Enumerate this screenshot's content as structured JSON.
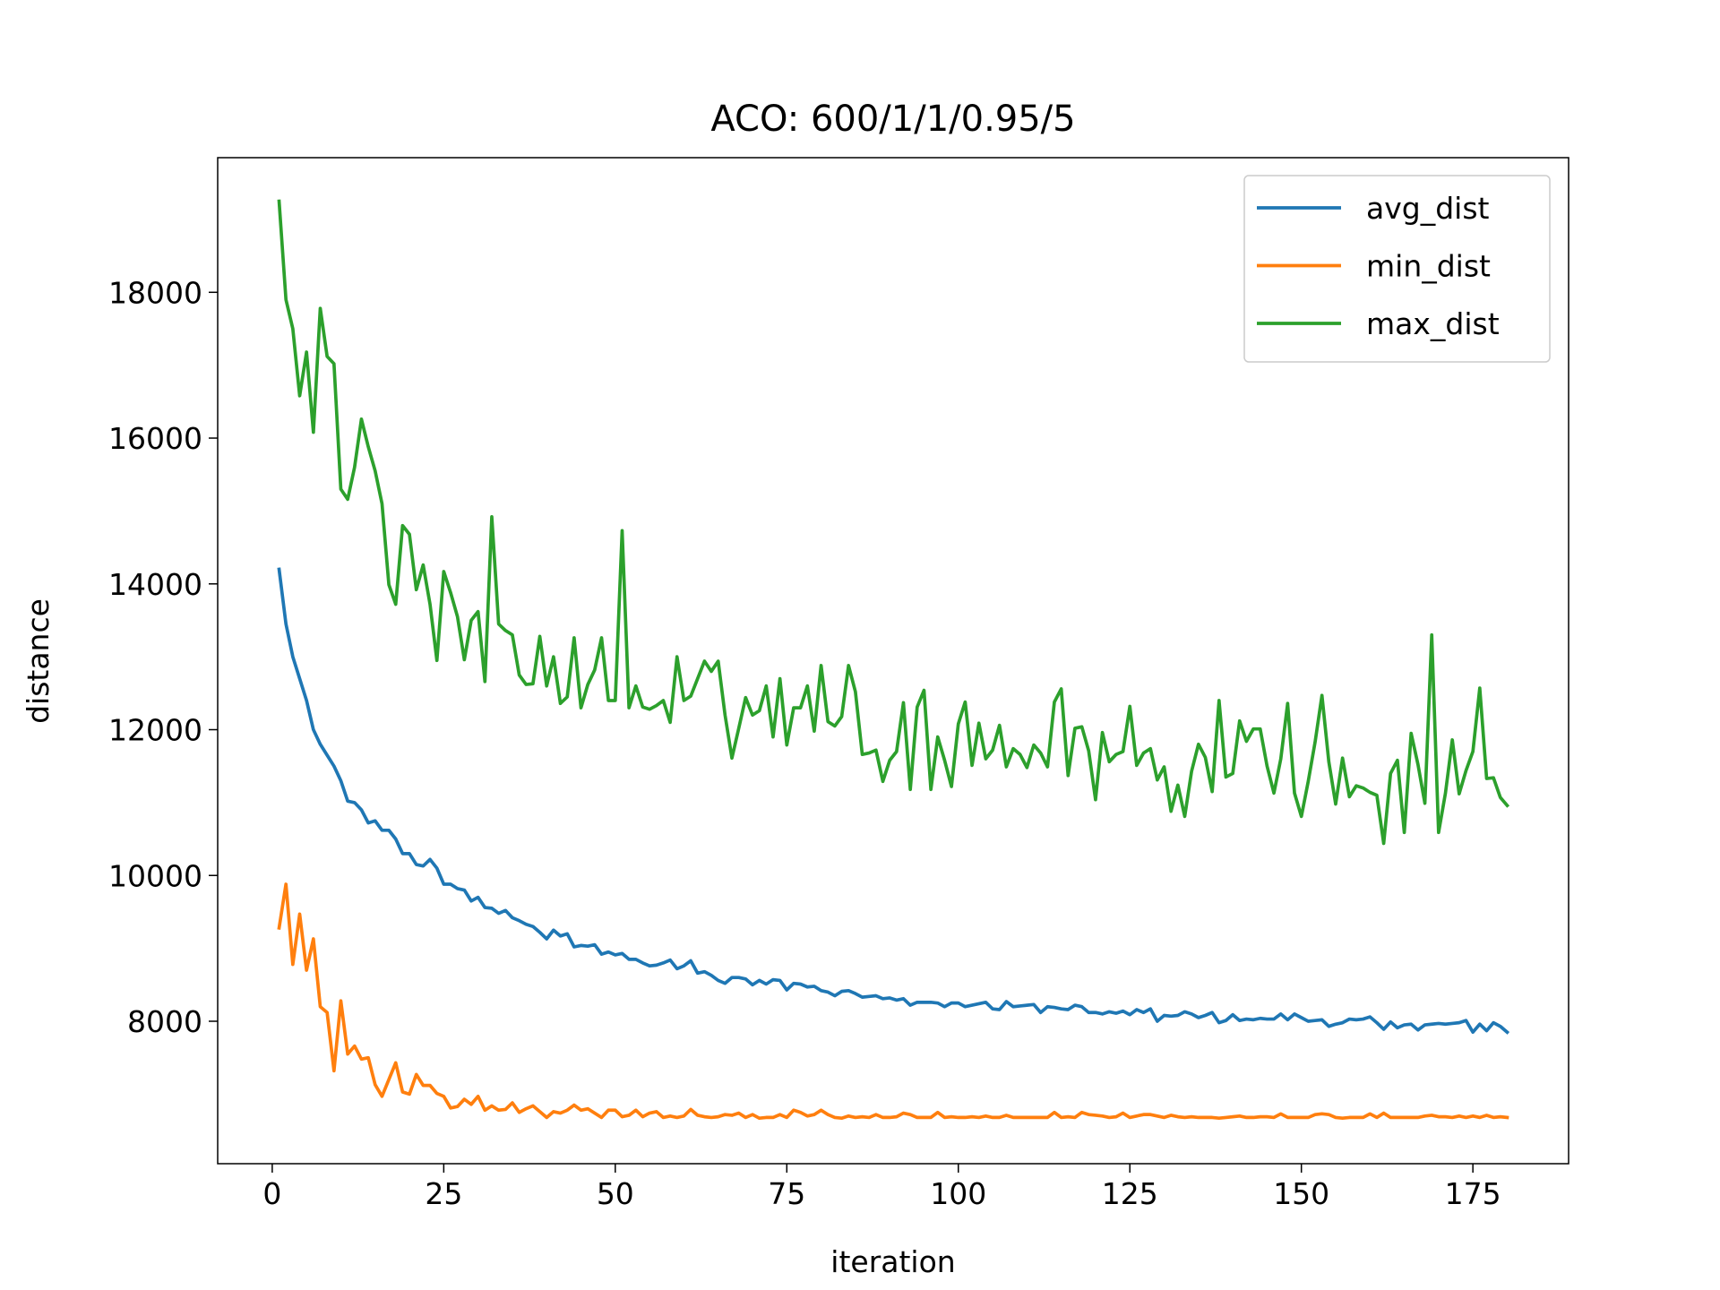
{
  "chart_data": {
    "type": "line",
    "title": "ACO: 600/1/1/0.95/5",
    "x_label": "iteration",
    "y_label": "distance",
    "x": [
      1,
      2,
      3,
      4,
      5,
      6,
      7,
      8,
      9,
      10,
      11,
      12,
      13,
      14,
      15,
      16,
      17,
      18,
      19,
      20,
      21,
      22,
      23,
      24,
      25,
      26,
      27,
      28,
      29,
      30,
      31,
      32,
      33,
      34,
      35,
      36,
      37,
      38,
      39,
      40,
      41,
      42,
      43,
      44,
      45,
      46,
      47,
      48,
      49,
      50,
      51,
      52,
      53,
      54,
      55,
      56,
      57,
      58,
      59,
      60,
      61,
      62,
      63,
      64,
      65,
      66,
      67,
      68,
      69,
      70,
      71,
      72,
      73,
      74,
      75,
      76,
      77,
      78,
      79,
      80,
      81,
      82,
      83,
      84,
      85,
      86,
      87,
      88,
      89,
      90,
      91,
      92,
      93,
      94,
      95,
      96,
      97,
      98,
      99,
      100,
      101,
      102,
      103,
      104,
      105,
      106,
      107,
      108,
      109,
      110,
      111,
      112,
      113,
      114,
      115,
      116,
      117,
      118,
      119,
      120,
      121,
      122,
      123,
      124,
      125,
      126,
      127,
      128,
      129,
      130,
      131,
      132,
      133,
      134,
      135,
      136,
      137,
      138,
      139,
      140,
      141,
      142,
      143,
      144,
      145,
      146,
      147,
      148,
      149,
      150,
      151,
      152,
      153,
      154,
      155,
      156,
      157,
      158,
      159,
      160,
      161,
      162,
      163,
      164,
      165,
      166,
      167,
      168,
      169,
      170,
      171,
      172,
      173,
      174,
      175,
      176,
      177,
      178,
      179,
      180
    ],
    "series": [
      {
        "name": "avg_dist",
        "color": "#1f77b4",
        "values": [
          14200,
          13450,
          13000,
          12700,
          12400,
          12000,
          11800,
          11650,
          11500,
          11300,
          11020,
          11000,
          10900,
          10720,
          10750,
          10620,
          10620,
          10500,
          10300,
          10300,
          10150,
          10130,
          10220,
          10100,
          9880,
          9880,
          9820,
          9800,
          9650,
          9700,
          9560,
          9550,
          9480,
          9520,
          9420,
          9380,
          9330,
          9300,
          9220,
          9130,
          9250,
          9170,
          9200,
          9020,
          9040,
          9030,
          9050,
          8920,
          8950,
          8910,
          8930,
          8850,
          8850,
          8800,
          8760,
          8770,
          8800,
          8840,
          8720,
          8760,
          8830,
          8660,
          8680,
          8630,
          8560,
          8520,
          8600,
          8600,
          8580,
          8500,
          8560,
          8510,
          8570,
          8560,
          8430,
          8520,
          8510,
          8470,
          8480,
          8420,
          8400,
          8350,
          8410,
          8420,
          8380,
          8330,
          8340,
          8350,
          8310,
          8320,
          8290,
          8310,
          8220,
          8260,
          8260,
          8260,
          8250,
          8200,
          8250,
          8250,
          8200,
          8220,
          8240,
          8260,
          8170,
          8160,
          8270,
          8200,
          8210,
          8220,
          8230,
          8120,
          8200,
          8190,
          8170,
          8160,
          8220,
          8200,
          8120,
          8120,
          8100,
          8130,
          8110,
          8140,
          8090,
          8160,
          8120,
          8170,
          8000,
          8080,
          8070,
          8080,
          8130,
          8100,
          8050,
          8080,
          8120,
          7980,
          8010,
          8090,
          8010,
          8030,
          8020,
          8040,
          8030,
          8030,
          8100,
          8020,
          8100,
          8050,
          8000,
          8010,
          8020,
          7930,
          7960,
          7980,
          8030,
          8020,
          8030,
          8060,
          7980,
          7890,
          7990,
          7910,
          7950,
          7960,
          7880,
          7950,
          7960,
          7970,
          7960,
          7970,
          7980,
          8010,
          7850,
          7960,
          7870,
          7980,
          7930,
          7850
        ]
      },
      {
        "name": "min_dist",
        "color": "#ff7f0e",
        "values": [
          9280,
          9880,
          8780,
          9470,
          8700,
          9130,
          8200,
          8120,
          7320,
          8280,
          7550,
          7660,
          7480,
          7500,
          7130,
          6970,
          7200,
          7430,
          7030,
          7000,
          7270,
          7120,
          7120,
          7010,
          6970,
          6810,
          6830,
          6930,
          6860,
          6970,
          6780,
          6840,
          6780,
          6790,
          6880,
          6750,
          6800,
          6840,
          6760,
          6680,
          6760,
          6740,
          6780,
          6850,
          6780,
          6800,
          6740,
          6680,
          6780,
          6780,
          6690,
          6710,
          6780,
          6690,
          6740,
          6760,
          6680,
          6700,
          6680,
          6700,
          6790,
          6710,
          6690,
          6680,
          6690,
          6720,
          6710,
          6740,
          6680,
          6720,
          6670,
          6680,
          6680,
          6720,
          6680,
          6780,
          6750,
          6700,
          6720,
          6780,
          6720,
          6680,
          6670,
          6700,
          6680,
          6690,
          6680,
          6720,
          6680,
          6680,
          6690,
          6740,
          6720,
          6680,
          6680,
          6680,
          6750,
          6680,
          6690,
          6680,
          6680,
          6690,
          6680,
          6700,
          6680,
          6680,
          6710,
          6680,
          6680,
          6680,
          6680,
          6680,
          6680,
          6750,
          6680,
          6690,
          6680,
          6750,
          6720,
          6710,
          6700,
          6680,
          6690,
          6740,
          6680,
          6700,
          6720,
          6720,
          6700,
          6680,
          6710,
          6690,
          6680,
          6690,
          6680,
          6680,
          6680,
          6670,
          6680,
          6690,
          6700,
          6680,
          6680,
          6690,
          6690,
          6680,
          6730,
          6680,
          6680,
          6680,
          6680,
          6720,
          6730,
          6720,
          6680,
          6670,
          6680,
          6680,
          6680,
          6730,
          6680,
          6740,
          6680,
          6680,
          6680,
          6680,
          6680,
          6700,
          6710,
          6690,
          6690,
          6680,
          6700,
          6680,
          6700,
          6680,
          6710,
          6680,
          6690,
          6680
        ]
      },
      {
        "name": "max_dist",
        "color": "#2ca02c",
        "values": [
          19250,
          17900,
          17500,
          16580,
          17180,
          16080,
          17780,
          17120,
          17020,
          15300,
          15160,
          15600,
          16260,
          15880,
          15550,
          15100,
          13990,
          13720,
          14800,
          14680,
          13920,
          14260,
          13720,
          12950,
          14170,
          13880,
          13550,
          12960,
          13500,
          13620,
          12660,
          14920,
          13450,
          13360,
          13300,
          12750,
          12620,
          12630,
          13280,
          12600,
          13000,
          12360,
          12450,
          13260,
          12300,
          12620,
          12820,
          13260,
          12400,
          12400,
          14730,
          12300,
          12600,
          12310,
          12280,
          12330,
          12400,
          12100,
          13000,
          12400,
          12460,
          12700,
          12940,
          12800,
          12940,
          12200,
          11610,
          12020,
          12440,
          12200,
          12260,
          12600,
          11900,
          12700,
          11790,
          12300,
          12300,
          12600,
          11980,
          12880,
          12110,
          12050,
          12180,
          12880,
          12520,
          11660,
          11680,
          11720,
          11290,
          11580,
          11700,
          12370,
          11180,
          12310,
          12540,
          11180,
          11900,
          11580,
          11220,
          12080,
          12380,
          11510,
          12090,
          11600,
          11720,
          12060,
          11490,
          11740,
          11660,
          11480,
          11790,
          11680,
          11490,
          12380,
          12560,
          11370,
          12020,
          12040,
          11710,
          11040,
          11960,
          11560,
          11660,
          11700,
          12320,
          11510,
          11680,
          11740,
          11310,
          11490,
          10880,
          11240,
          10810,
          11430,
          11800,
          11620,
          11150,
          12400,
          11350,
          11400,
          12120,
          11840,
          12010,
          12010,
          11500,
          11130,
          11600,
          12360,
          11130,
          10810,
          11290,
          11830,
          12470,
          11560,
          10980,
          11610,
          11080,
          11230,
          11200,
          11140,
          11100,
          10440,
          11400,
          11580,
          10590,
          11950,
          11520,
          10990,
          13300,
          10590,
          11130,
          11860,
          11120,
          11440,
          11700,
          12570,
          11330,
          11340,
          11070,
          10960
        ]
      }
    ],
    "xlim": [
      -7.95,
      188.95
    ],
    "xticks": [
      0,
      25,
      50,
      75,
      100,
      125,
      150,
      175
    ],
    "ylim": [
      6046,
      19847
    ],
    "yticks": [
      8000,
      10000,
      12000,
      14000,
      16000,
      18000
    ],
    "legend": "upper right"
  }
}
